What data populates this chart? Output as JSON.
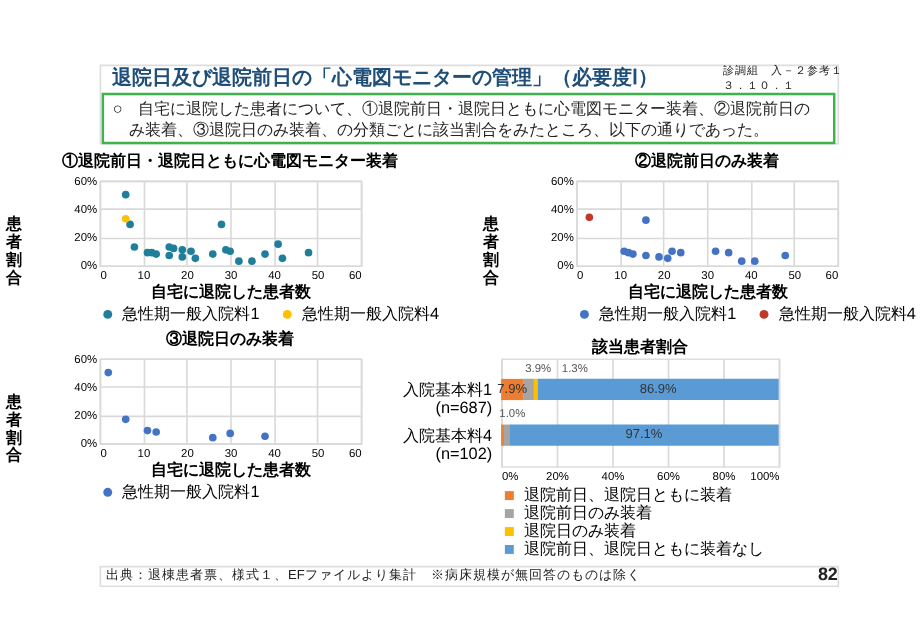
{
  "chart_data": [
    {
      "type": "other",
      "title": "退院日及び退院前日の「心電図モニターの管理」（必要度Ⅰ）",
      "annotations": [
        "○　自宅に退院した患者について、①退院前日・退院日ともに心電図モニター装着、②退院前日のみ装着、③退院日のみ装着、の分類ごとに該当割合をみたところ、以下の通りであった。",
        "診調組　入－２参考１",
        "３．１０．１",
        "出典：退棟患者票、様式１、EFファイルより集計　※病床規模が無回答のものは除く",
        "82"
      ]
    },
    {
      "type": "scatter",
      "title": "①退院前日・退院日ともに心電図モニター装着",
      "xlabel": "自宅に退院した患者数",
      "ylabel": "患者割合",
      "xlim": [
        0,
        60
      ],
      "xticks": [
        0,
        10,
        20,
        30,
        40,
        50,
        60
      ],
      "ylim": [
        0,
        60
      ],
      "yticks": [
        {
          "value": 0,
          "label": "0%"
        },
        {
          "value": 20,
          "label": "20%"
        },
        {
          "value": 40,
          "label": "40%"
        },
        {
          "value": 60,
          "label": "60%"
        }
      ],
      "grid": true,
      "legend": "bottom",
      "marker": "circle",
      "series": [
        {
          "name": "急性期一般入院料1",
          "color": "#1f7f9a",
          "x": [
            6,
            7,
            8,
            11,
            12,
            13,
            16,
            17,
            16,
            19,
            19,
            21,
            22,
            26,
            28,
            29,
            30,
            32,
            35,
            38,
            41,
            42,
            48
          ],
          "values": [
            50,
            29,
            13,
            9,
            9,
            8,
            13,
            12,
            7,
            11,
            6,
            10,
            5,
            8,
            29,
            11,
            10,
            3,
            3,
            8,
            15,
            5,
            9
          ]
        },
        {
          "name": "急性期一般入院料4",
          "color": "#ffc000",
          "x": [
            6
          ],
          "values": [
            33
          ]
        }
      ]
    },
    {
      "type": "scatter",
      "title": "②退院前日のみ装着",
      "xlabel": "自宅に退院した患者数",
      "ylabel": "患者割合",
      "xlim": [
        0,
        60
      ],
      "xticks": [
        0,
        10,
        20,
        30,
        40,
        50,
        60
      ],
      "ylim": [
        0,
        60
      ],
      "yticks": [
        {
          "value": 0,
          "label": "0%"
        },
        {
          "value": 20,
          "label": "20%"
        },
        {
          "value": 40,
          "label": "40%"
        },
        {
          "value": 60,
          "label": "60%"
        }
      ],
      "grid": true,
      "legend": "bottom",
      "marker": "circle",
      "series": [
        {
          "name": "急性期一般入院料1",
          "color": "#4472c4",
          "x": [
            16,
            11,
            12,
            13,
            16,
            19,
            21,
            22,
            24,
            32,
            35,
            38,
            41,
            48
          ],
          "values": [
            32,
            10,
            9,
            8,
            7,
            6,
            5,
            10,
            9,
            10,
            9,
            3,
            3,
            7
          ]
        },
        {
          "name": "急性期一般入院料4",
          "color": "#c0392b",
          "x": [
            3
          ],
          "values": [
            34
          ]
        }
      ]
    },
    {
      "type": "scatter",
      "title": "③退院日のみ装着",
      "xlabel": "自宅に退院した患者数",
      "ylabel": "患者割合",
      "xlim": [
        0,
        60
      ],
      "xticks": [
        0,
        10,
        20,
        30,
        40,
        50,
        60
      ],
      "ylim": [
        0,
        60
      ],
      "yticks": [
        {
          "value": 0,
          "label": "0%"
        },
        {
          "value": 20,
          "label": "20%"
        },
        {
          "value": 40,
          "label": "40%"
        },
        {
          "value": 60,
          "label": "60%"
        }
      ],
      "grid": true,
      "legend": "bottom",
      "marker": "circle",
      "series": [
        {
          "name": "急性期一般入院料1",
          "color": "#4472c4",
          "x": [
            2,
            6,
            11,
            13,
            26,
            30,
            38
          ],
          "values": [
            50,
            17,
            9,
            8,
            4,
            7,
            5
          ]
        }
      ]
    },
    {
      "type": "bar",
      "orientation": "horizontal",
      "stacked": true,
      "title": "該当患者割合",
      "categories": [
        "入院基本料1 (n=687)",
        "入院基本料4 (n=102)"
      ],
      "xlim": [
        0,
        100
      ],
      "xticks": [
        {
          "value": 0,
          "label": "0%"
        },
        {
          "value": 20,
          "label": "20%"
        },
        {
          "value": 40,
          "label": "40%"
        },
        {
          "value": 60,
          "label": "60%"
        },
        {
          "value": 80,
          "label": "80%"
        },
        {
          "value": 100,
          "label": "100%"
        }
      ],
      "grid": "x",
      "legend": "bottom",
      "series": [
        {
          "name": "退院前日、退院日ともに装着",
          "color": "#ed7d31",
          "values": [
            7.9,
            1.0
          ],
          "value_labels": [
            "7.9%",
            "1.0%"
          ]
        },
        {
          "name": "退院前日のみ装着",
          "color": "#a5a5a5",
          "values": [
            3.9,
            1.9
          ],
          "value_labels": [
            "3.9%",
            null
          ]
        },
        {
          "name": "退院日のみ装着",
          "color": "#ffc000",
          "values": [
            1.3,
            0
          ],
          "value_labels": [
            "1.3%",
            null
          ]
        },
        {
          "name": "退院前日、退院日ともに装着なし",
          "color": "#5b9bd5",
          "values": [
            86.9,
            97.1
          ],
          "value_labels": [
            "86.9%",
            "97.1%"
          ]
        }
      ]
    }
  ]
}
